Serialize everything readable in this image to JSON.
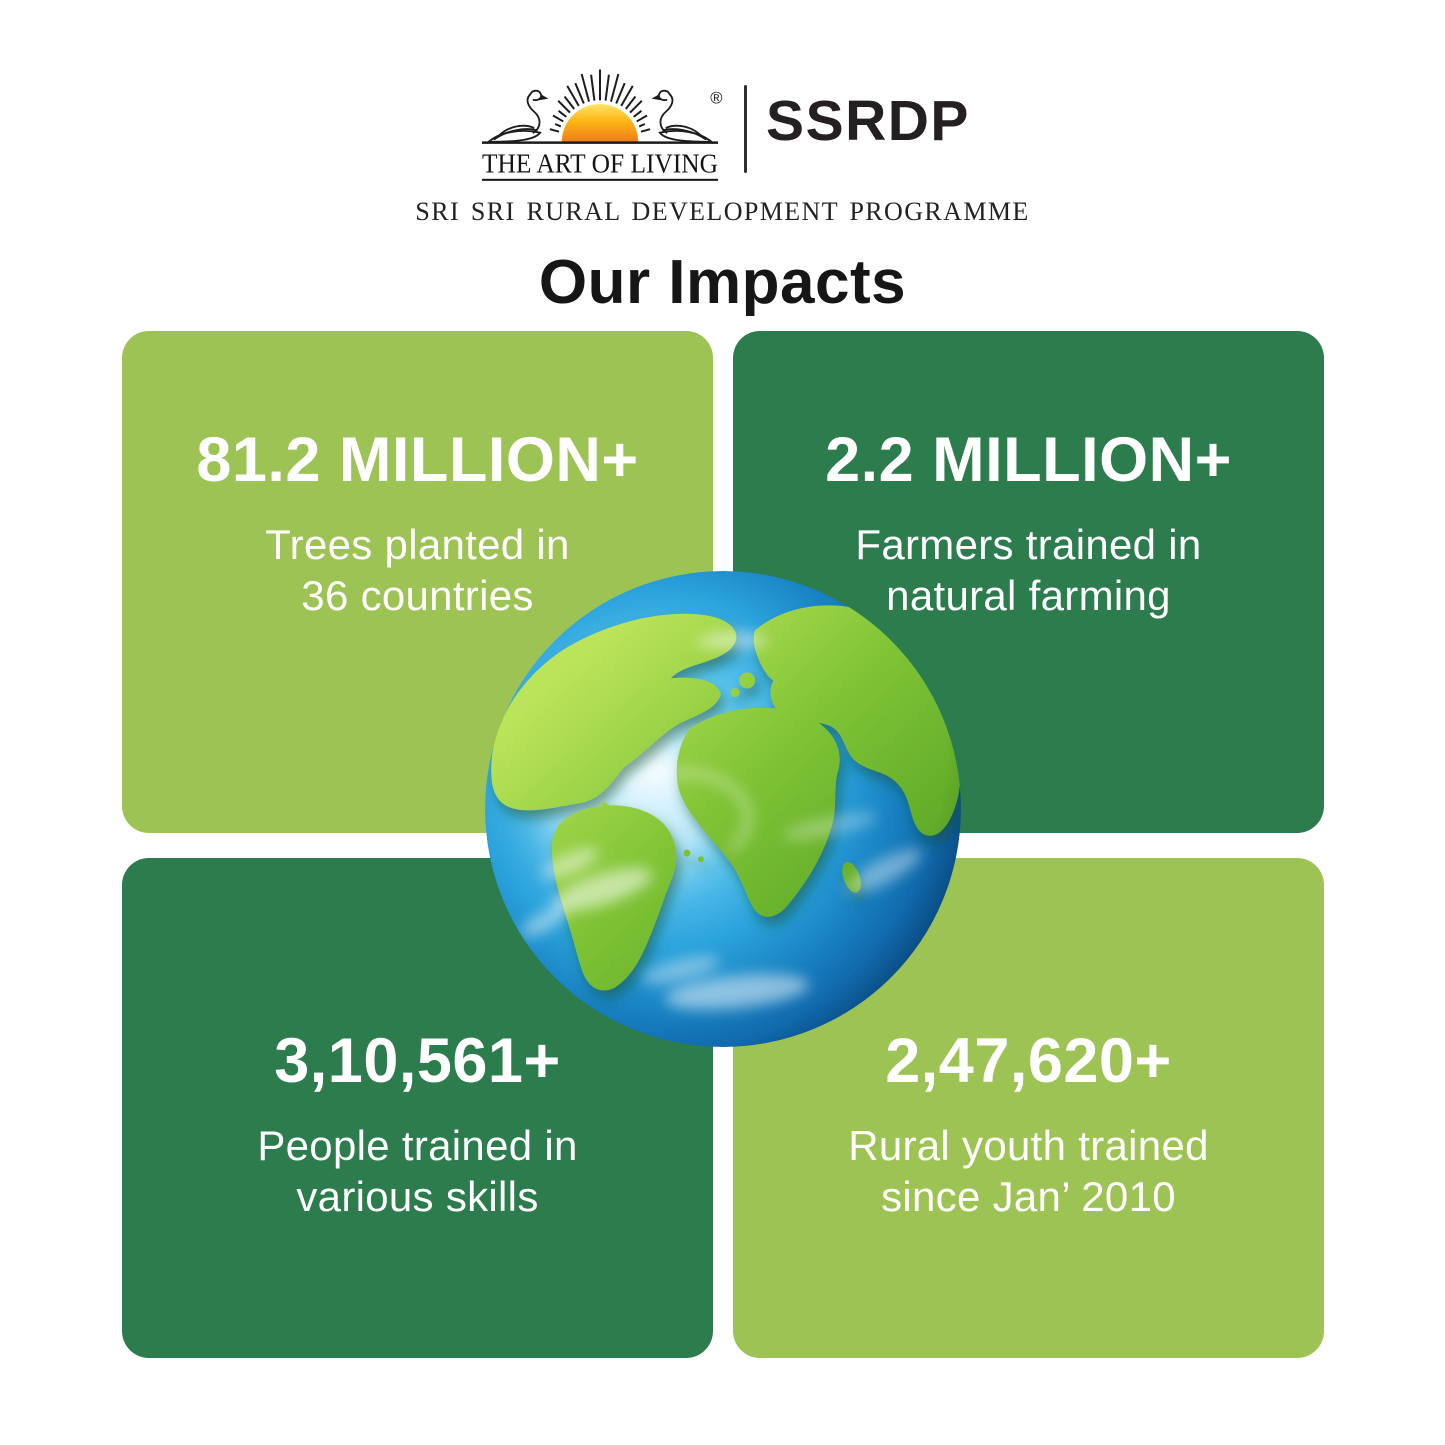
{
  "header": {
    "logo": {
      "brand_name": "THE ART OF LIVING",
      "registered_mark": "®",
      "acronym": "SSRDP",
      "programme_name": "SRI SRI RURAL DEVELOPMENT PROGRAMME"
    },
    "title": "Our Impacts"
  },
  "cards": [
    {
      "value": "81.2 MILLION+",
      "line1": "Trees planted in",
      "line2": "36 countries"
    },
    {
      "value": "2.2 MILLION+",
      "line1": "Farmers trained in",
      "line2": "natural farming"
    },
    {
      "value": "3,10,561+",
      "line1": "People trained in",
      "line2": "various skills"
    },
    {
      "value": "2,47,620+",
      "line1": "Rural youth trained",
      "line2": "since Jan’ 2010"
    }
  ],
  "colors": {
    "light_green": "#9DC355",
    "dark_green": "#2C7C4D",
    "title_text": "#161616",
    "card_text": "#FFFFFF",
    "sun_yellow": "#FFD93B",
    "sun_orange": "#EF7D1A",
    "logo_ink": "#1C1C1C"
  }
}
